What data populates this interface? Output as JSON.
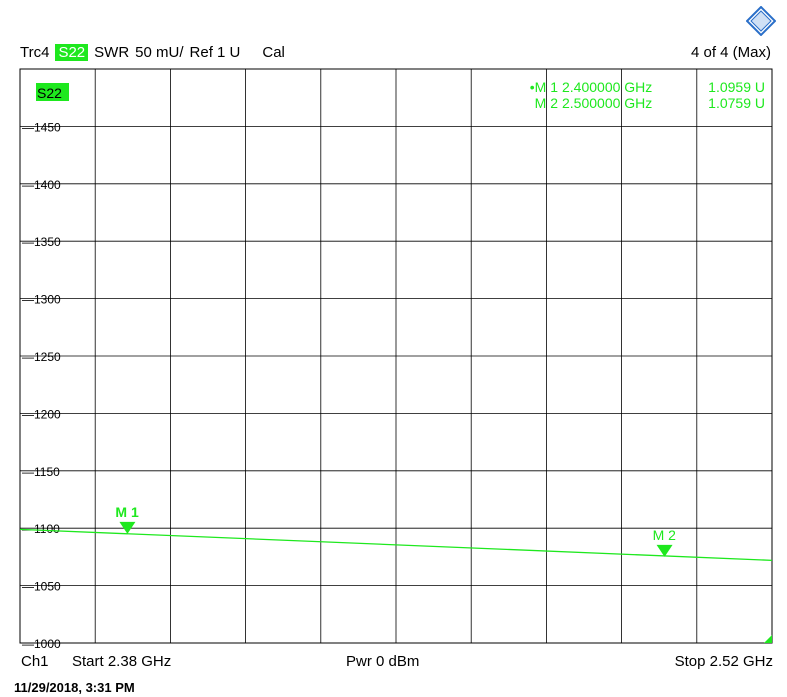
{
  "header": {
    "trace": "Trc4",
    "param": "S22",
    "format": "SWR",
    "scale": "50 mU/",
    "ref": "Ref 1 U",
    "cal": "Cal",
    "count": "4 of 4 (Max)"
  },
  "footer": {
    "channel": "Ch1",
    "start": "Start  2.38 GHz",
    "power": "Pwr  0 dBm",
    "stop": "Stop  2.52 GHz",
    "date": "11/29/2018, 3:31 PM"
  },
  "colors": {
    "trace": "#1ee81e",
    "grid": "#000000"
  },
  "chart_data": {
    "type": "line",
    "badge": "S22",
    "xlim": [
      2.38,
      2.52
    ],
    "ylim": [
      1000,
      1500
    ],
    "yticks": [
      1450,
      1400,
      1350,
      1300,
      1250,
      1200,
      1150,
      1100,
      1050,
      1000
    ],
    "grid": true,
    "series": [
      {
        "x": [
          2.38,
          2.52
        ],
        "y": [
          1099,
          1072
        ]
      }
    ],
    "markers": [
      {
        "label": "M 1",
        "x": 2.4,
        "y": 1095.9,
        "readout": [
          "•M 1",
          "2.400000 GHz",
          "1.0959 U"
        ]
      },
      {
        "label": "M 2",
        "x": 2.5,
        "y": 1075.9,
        "readout": [
          "M 2",
          "2.500000 GHz",
          "1.0759 U"
        ]
      }
    ]
  }
}
